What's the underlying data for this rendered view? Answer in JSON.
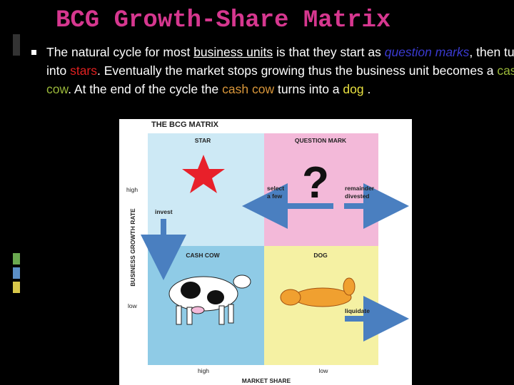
{
  "title": "BCG Growth-Share Matrix",
  "bullet": {
    "segments": [
      "The natural cycle for most ",
      "business units",
      " is that they start as ",
      "question marks",
      ", then turn into ",
      "stars",
      ". Eventually the market stops growing thus the business unit becomes a ",
      "cash cow",
      ".  At the end of the cycle the ",
      "cash cow",
      " turns into a ",
      "dog",
      " ."
    ]
  },
  "matrix": {
    "title": "THE BCG MATRIX",
    "quadrants": [
      "STAR",
      "QUESTION MARK",
      "CASH COW",
      "DOG"
    ],
    "question_symbol": "?",
    "y_axis": {
      "label": "BUSINESS GROWTH RATE",
      "high": "high",
      "low": "low"
    },
    "x_axis": {
      "label": "MARKET SHARE",
      "high": "high",
      "low": "low"
    },
    "arrows": {
      "select": [
        "select",
        "a few"
      ],
      "divested": [
        "remainder",
        "divested"
      ],
      "invest": "invest",
      "liquidate": "liquidate"
    }
  }
}
